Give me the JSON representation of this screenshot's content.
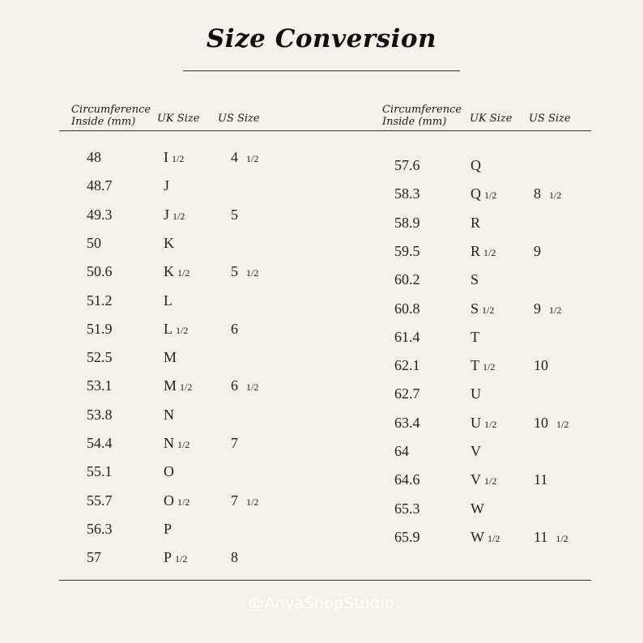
{
  "title": "Size Conversion",
  "headers": {
    "circumference_line1": "Circumference",
    "circumference_line2": "Inside (mm)",
    "uk": "UK Size",
    "us": "US Size"
  },
  "left_rows": [
    {
      "mm": "48",
      "uk": "I",
      "uk_frac": "1/2",
      "us": "4",
      "us_frac": "1/2"
    },
    {
      "mm": "48.7",
      "uk": "J",
      "uk_frac": "",
      "us": "",
      "us_frac": ""
    },
    {
      "mm": "49.3",
      "uk": "J",
      "uk_frac": "1/2",
      "us": "5",
      "us_frac": ""
    },
    {
      "mm": "50",
      "uk": "K",
      "uk_frac": "",
      "us": "",
      "us_frac": ""
    },
    {
      "mm": "50.6",
      "uk": "K",
      "uk_frac": "1/2",
      "us": "5",
      "us_frac": "1/2"
    },
    {
      "mm": "51.2",
      "uk": "L",
      "uk_frac": "",
      "us": "",
      "us_frac": ""
    },
    {
      "mm": "51.9",
      "uk": "L",
      "uk_frac": "1/2",
      "us": "6",
      "us_frac": ""
    },
    {
      "mm": "52.5",
      "uk": "M",
      "uk_frac": "",
      "us": "",
      "us_frac": ""
    },
    {
      "mm": "53.1",
      "uk": "M",
      "uk_frac": "1/2",
      "us": "6",
      "us_frac": "1/2"
    },
    {
      "mm": "53.8",
      "uk": "N",
      "uk_frac": "",
      "us": "",
      "us_frac": ""
    },
    {
      "mm": "54.4",
      "uk": "N",
      "uk_frac": "1/2",
      "us": "7",
      "us_frac": ""
    },
    {
      "mm": "55.1",
      "uk": "O",
      "uk_frac": "",
      "us": "",
      "us_frac": ""
    },
    {
      "mm": "55.7",
      "uk": "O",
      "uk_frac": "1/2",
      "us": "7",
      "us_frac": "1/2"
    },
    {
      "mm": "56.3",
      "uk": "P",
      "uk_frac": "",
      "us": "",
      "us_frac": ""
    },
    {
      "mm": "57",
      "uk": "P",
      "uk_frac": "1/2",
      "us": "8",
      "us_frac": ""
    }
  ],
  "right_rows": [
    {
      "mm": "57.6",
      "uk": "Q",
      "uk_frac": "",
      "us": "",
      "us_frac": ""
    },
    {
      "mm": "58.3",
      "uk": "Q",
      "uk_frac": "1/2",
      "us": "8",
      "us_frac": "1/2"
    },
    {
      "mm": "58.9",
      "uk": "R",
      "uk_frac": "",
      "us": "",
      "us_frac": ""
    },
    {
      "mm": "59.5",
      "uk": "R",
      "uk_frac": "1/2",
      "us": "9",
      "us_frac": ""
    },
    {
      "mm": "60.2",
      "uk": "S",
      "uk_frac": "",
      "us": "",
      "us_frac": ""
    },
    {
      "mm": "60.8",
      "uk": "S",
      "uk_frac": "1/2",
      "us": "9",
      "us_frac": "1/2"
    },
    {
      "mm": "61.4",
      "uk": "T",
      "uk_frac": "",
      "us": "",
      "us_frac": ""
    },
    {
      "mm": "62.1",
      "uk": "T",
      "uk_frac": "1/2",
      "us": "10",
      "us_frac": ""
    },
    {
      "mm": "62.7",
      "uk": "U",
      "uk_frac": "",
      "us": "",
      "us_frac": ""
    },
    {
      "mm": "63.4",
      "uk": "U",
      "uk_frac": "1/2",
      "us": "10",
      "us_frac": "1/2"
    },
    {
      "mm": "64",
      "uk": "V",
      "uk_frac": "",
      "us": "",
      "us_frac": ""
    },
    {
      "mm": "64.6",
      "uk": "V",
      "uk_frac": "1/2",
      "us": "11",
      "us_frac": ""
    },
    {
      "mm": "65.3",
      "uk": "W",
      "uk_frac": "",
      "us": "",
      "us_frac": ""
    },
    {
      "mm": "65.9",
      "uk": "W",
      "uk_frac": "1/2",
      "us": "11",
      "us_frac": "1/2"
    }
  ],
  "watermark": "@AnyaShopStudio",
  "colors": {
    "background": "#f4f0ea",
    "text": "#1f1f1f",
    "watermark": "#ffffff"
  }
}
